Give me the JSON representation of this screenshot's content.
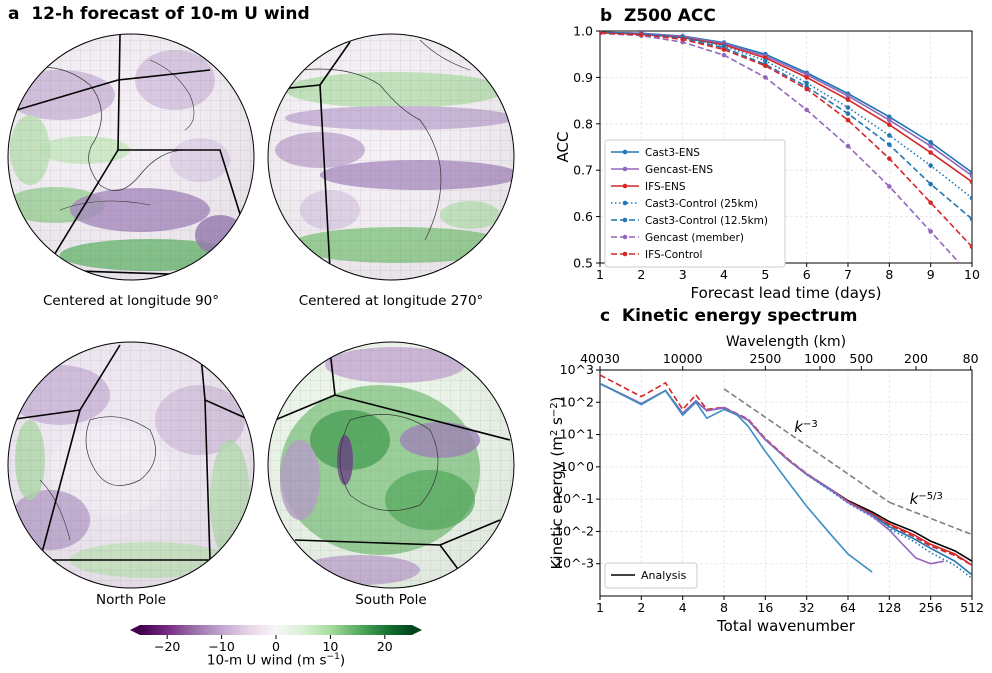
{
  "panel_a": {
    "letter": "a",
    "title": "12-h forecast of 10-m U wind",
    "globes": [
      {
        "caption": "Centered at longitude 90°"
      },
      {
        "caption": "Centered at longitude 270°"
      },
      {
        "caption": "North Pole"
      },
      {
        "caption": "South Pole"
      }
    ],
    "colorbar": {
      "label": "10-m U wind (m s",
      "label_sup": "−1",
      "label_tail": ")",
      "ticks": [
        "−20",
        "−10",
        "0",
        "10",
        "20"
      ],
      "range": [
        -25,
        25
      ],
      "colormap": [
        "#40004b",
        "#762a83",
        "#9970ab",
        "#c2a5cf",
        "#e7d4e8",
        "#f7f7f7",
        "#d9f0d3",
        "#a6dba0",
        "#5aae61",
        "#1b7837",
        "#00441b"
      ]
    }
  },
  "chart_data": [
    {
      "type": "line",
      "letter": "b",
      "title": "Z500 ACC",
      "xlabel": "Forecast lead time (days)",
      "ylabel": "ACC",
      "xlim": [
        1,
        10
      ],
      "ylim": [
        0.5,
        1.0
      ],
      "xticks": [
        "1",
        "2",
        "3",
        "4",
        "5",
        "6",
        "7",
        "8",
        "9",
        "10"
      ],
      "yticks": [
        "0.5",
        "0.6",
        "0.7",
        "0.8",
        "0.9",
        "1.0"
      ],
      "grid": true,
      "legend_position": "lower-left",
      "x": [
        1,
        2,
        3,
        4,
        5,
        6,
        7,
        8,
        9,
        10
      ],
      "series": [
        {
          "name": "Cast3-ENS",
          "color": "#1f77b4",
          "style": "solid",
          "values": [
            0.997,
            0.995,
            0.989,
            0.975,
            0.95,
            0.91,
            0.865,
            0.815,
            0.76,
            0.695
          ]
        },
        {
          "name": "Gencast-ENS",
          "color": "#9467bd",
          "style": "solid",
          "values": [
            0.997,
            0.995,
            0.988,
            0.973,
            0.946,
            0.906,
            0.86,
            0.808,
            0.752,
            0.688
          ]
        },
        {
          "name": "IFS-ENS",
          "color": "#d62728",
          "style": "solid",
          "values": [
            0.996,
            0.993,
            0.986,
            0.97,
            0.942,
            0.9,
            0.852,
            0.798,
            0.738,
            0.675
          ]
        },
        {
          "name": "Cast3-Control (25km)",
          "color": "#1f77b4",
          "style": "dotted",
          "values": [
            0.997,
            0.994,
            0.986,
            0.968,
            0.936,
            0.888,
            0.835,
            0.775,
            0.71,
            0.64
          ]
        },
        {
          "name": "Cast3-Control (12.5km)",
          "color": "#1f77b4",
          "style": "dashed",
          "values": [
            0.997,
            0.994,
            0.984,
            0.964,
            0.928,
            0.88,
            0.822,
            0.755,
            0.67,
            0.595
          ]
        },
        {
          "name": "Gencast (member)",
          "color": "#9467bd",
          "style": "dashed",
          "values": [
            0.995,
            0.99,
            0.976,
            0.948,
            0.9,
            0.83,
            0.752,
            0.665,
            0.568,
            0.47
          ]
        },
        {
          "name": "IFS-Control",
          "color": "#d62728",
          "style": "dashed",
          "values": [
            0.996,
            0.992,
            0.982,
            0.96,
            0.925,
            0.875,
            0.808,
            0.725,
            0.63,
            0.535
          ]
        }
      ]
    },
    {
      "type": "line",
      "letter": "c",
      "title": "Kinetic energy spectrum",
      "xlabel": "Total wavenumber",
      "ylabel": "Kinetic energy (m",
      "ylabel_sup1": "2",
      "ylabel_mid": " s",
      "ylabel_sup2": "−2",
      "ylabel_tail": ")",
      "top_xlabel": "Wavelength (km)",
      "xscale": "log2",
      "yscale": "log10",
      "xlim": [
        1,
        512
      ],
      "ylim_exp": [
        -4,
        3
      ],
      "xticks": [
        "1",
        "2",
        "4",
        "8",
        "16",
        "32",
        "64",
        "128",
        "256",
        "512"
      ],
      "yticks": [
        "10^-3",
        "10^-2",
        "10^-1",
        "10^0",
        "10^1",
        "10^2",
        "10^3"
      ],
      "top_ticks": [
        {
          "label": "40030",
          "wavelength_km": 40030
        },
        {
          "label": "10000",
          "wavelength_km": 10000
        },
        {
          "label": "2500",
          "wavelength_km": 2500
        },
        {
          "label": "1000",
          "wavelength_km": 1000
        },
        {
          "label": "500",
          "wavelength_km": 500
        },
        {
          "label": "200",
          "wavelength_km": 200
        },
        {
          "label": "80",
          "wavelength_km": 80
        }
      ],
      "grid": true,
      "legend_position": "lower-left",
      "annotations": [
        {
          "base": "k",
          "exp": "−3",
          "anchor_x": 26,
          "anchor_y": 12
        },
        {
          "base": "k",
          "exp": "−5/3",
          "anchor_x": 180,
          "anchor_y": 0.07
        }
      ],
      "series": [
        {
          "name": "Analysis",
          "legend": true,
          "color": "#000000",
          "style": "solid",
          "x": [
            1,
            2,
            3,
            4,
            5,
            6,
            8,
            12,
            16,
            24,
            32,
            48,
            64,
            96,
            128,
            192,
            256,
            384,
            512
          ],
          "y": [
            380,
            90,
            230,
            45,
            110,
            55,
            68,
            28,
            7,
            1.5,
            0.6,
            0.2,
            0.09,
            0.04,
            0.02,
            0.01,
            0.005,
            0.0025,
            0.0012
          ]
        },
        {
          "name": "IFS-ENS",
          "legend": false,
          "color": "#d62728",
          "style": "solid",
          "x": [
            1,
            2,
            3,
            4,
            5,
            6,
            8,
            12,
            16,
            24,
            32,
            48,
            64,
            96,
            128,
            192,
            256,
            384,
            512
          ],
          "y": [
            380,
            90,
            230,
            45,
            110,
            55,
            68,
            28,
            7,
            1.5,
            0.6,
            0.2,
            0.085,
            0.035,
            0.017,
            0.008,
            0.004,
            0.002,
            0.0009
          ]
        },
        {
          "name": "IFS-Control",
          "legend": false,
          "color": "#d62728",
          "style": "dashed",
          "x": [
            1,
            2,
            3,
            4,
            5,
            6,
            8,
            12,
            16,
            24,
            32,
            48,
            64,
            96,
            128,
            192,
            256,
            384,
            512
          ],
          "y": [
            700,
            150,
            400,
            60,
            170,
            60,
            70,
            30,
            7.5,
            1.6,
            0.62,
            0.2,
            0.085,
            0.034,
            0.016,
            0.007,
            0.0035,
            0.0018,
            0.0009
          ]
        },
        {
          "name": "Cast3-ENS",
          "legend": false,
          "color": "#1f77b4",
          "style": "solid",
          "x": [
            1,
            2,
            3,
            4,
            5,
            6,
            8,
            12,
            16,
            24,
            32,
            48,
            64,
            96,
            128,
            192,
            256,
            384,
            512
          ],
          "y": [
            380,
            90,
            230,
            45,
            110,
            55,
            68,
            28,
            7,
            1.5,
            0.58,
            0.19,
            0.08,
            0.032,
            0.014,
            0.006,
            0.003,
            0.0012,
            0.00045
          ]
        },
        {
          "name": "Cast3-Control (25km)",
          "legend": false,
          "color": "#1f77b4",
          "style": "dotted",
          "x": [
            1,
            2,
            3,
            4,
            5,
            6,
            8,
            12,
            16,
            24,
            32,
            48,
            64,
            96,
            128,
            192,
            256,
            384,
            512
          ],
          "y": [
            380,
            90,
            230,
            45,
            110,
            55,
            68,
            28,
            7,
            1.5,
            0.57,
            0.18,
            0.075,
            0.028,
            0.012,
            0.005,
            0.0022,
            0.0009,
            0.00035
          ]
        },
        {
          "name": "Gencast-ENS",
          "legend": false,
          "color": "#9467bd",
          "style": "solid",
          "x": [
            1,
            2,
            3,
            4,
            5,
            6,
            8,
            12,
            16,
            24,
            32,
            48,
            64,
            96,
            128,
            160,
            200,
            256,
            320
          ],
          "y": [
            380,
            90,
            230,
            45,
            110,
            55,
            68,
            28,
            7,
            1.5,
            0.6,
            0.2,
            0.08,
            0.03,
            0.011,
            0.004,
            0.0015,
            0.001,
            0.0012
          ]
        },
        {
          "name": "Gencast (member)",
          "legend": false,
          "color": "#3b8ec4",
          "style": "solid",
          "x": [
            1,
            2,
            3,
            4,
            5,
            6,
            8,
            10,
            12,
            16,
            24,
            32,
            48,
            64,
            96
          ],
          "y": [
            380,
            85,
            230,
            40,
            100,
            32,
            60,
            40,
            18,
            3,
            0.3,
            0.06,
            0.008,
            0.002,
            0.00055
          ]
        },
        {
          "name": "k^-3 reference",
          "legend": false,
          "color": "#808080",
          "style": "dashed",
          "x": [
            8,
            128
          ],
          "y": [
            260,
            0.08
          ]
        },
        {
          "name": "k^-5/3 reference",
          "legend": false,
          "color": "#808080",
          "style": "dashed",
          "x": [
            128,
            512
          ],
          "y": [
            0.08,
            0.008
          ]
        }
      ]
    }
  ]
}
